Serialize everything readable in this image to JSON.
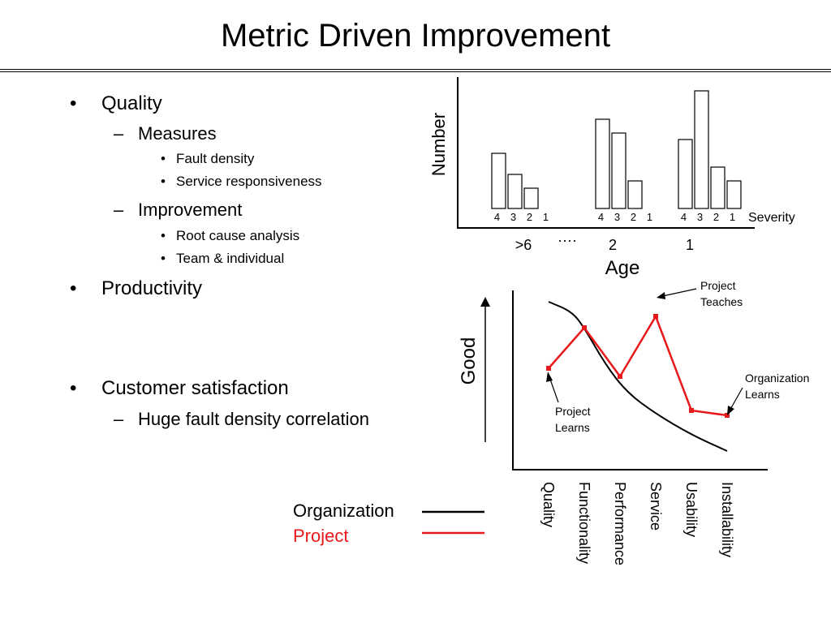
{
  "slide": {
    "title": "Metric Driven Improvement",
    "bullets": {
      "quality": "Quality",
      "measures": "Measures",
      "fault_density": "Fault density",
      "service_responsiveness": "Service responsiveness",
      "improvement": "Improvement",
      "root_cause": "Root cause analysis",
      "team_individual": "Team & individual",
      "productivity": "Productivity",
      "customer_satisfaction": "Customer satisfaction",
      "huge_fault": "Huge fault density correlation"
    },
    "markers": {
      "level1": "•",
      "level2": "–",
      "level3": "•"
    },
    "legend": {
      "organization": "Organization",
      "project": "Project"
    },
    "colors": {
      "organization": "#000000",
      "project": "#e8191b"
    }
  },
  "chart_data": [
    {
      "type": "bar",
      "title": "",
      "ylabel": "Number",
      "xlabel": "Age",
      "severity_label": "Severity",
      "ellipsis": "····",
      "groups": [
        {
          "age": ">6",
          "severities": [
            "4",
            "3",
            "2",
            "1"
          ],
          "values": [
            68,
            42,
            25,
            0
          ]
        },
        {
          "age": "2",
          "severities": [
            "4",
            "3",
            "2",
            "1"
          ],
          "values": [
            110,
            93,
            34,
            0
          ]
        },
        {
          "age": "1",
          "severities": [
            "4",
            "3",
            "2",
            "1"
          ],
          "values": [
            85,
            145,
            51,
            34
          ]
        }
      ]
    },
    {
      "type": "line",
      "ylabel": "Good",
      "categories": [
        "Quality",
        "Functionality",
        "Performance",
        "Service",
        "Usability",
        "Installability"
      ],
      "series": [
        {
          "name": "Organization",
          "curve": [
            [
              0,
              0.94
            ],
            [
              0.65,
              0.88
            ],
            [
              1,
              0.78
            ],
            [
              1.6,
              0.55
            ],
            [
              2.2,
              0.38
            ],
            [
              3,
              0.25
            ],
            [
              4,
              0.12
            ],
            [
              5,
              0.02
            ]
          ]
        },
        {
          "name": "Project",
          "values": [
            0.53,
            0.78,
            0.48,
            0.85,
            0.27,
            0.24
          ]
        }
      ],
      "annotations": [
        {
          "text": [
            "Project",
            "Teaches"
          ],
          "target": 3
        },
        {
          "text": [
            "Organization",
            "Learns"
          ],
          "target": 5
        },
        {
          "text": [
            "Project",
            "Learns"
          ],
          "target": 0
        }
      ]
    }
  ]
}
